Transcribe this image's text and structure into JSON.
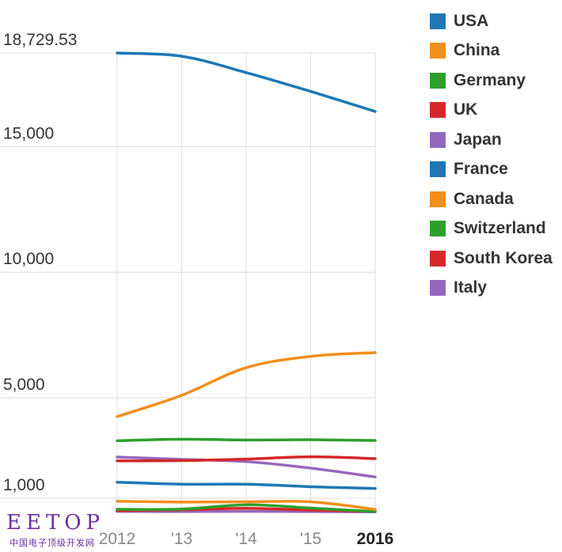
{
  "chart_data": {
    "type": "line",
    "title": "",
    "xlabel": "",
    "ylabel": "",
    "x": [
      "2012",
      "'13",
      "'14",
      "'15",
      "2016"
    ],
    "y_ticks": [
      "1,000",
      "5,000",
      "10,000",
      "15,000",
      "18,729.53"
    ],
    "y_tick_values": [
      1000,
      5000,
      10000,
      15000,
      18729.53
    ],
    "ylim": [
      435,
      18729.53
    ],
    "grid": "vertical lines at each x; horizontal lines at each y tick",
    "legend_position": "right",
    "series": [
      {
        "name": "USA",
        "color": "#1f77b4",
        "values": [
          18729.53,
          18600,
          17950,
          17200,
          16400
        ]
      },
      {
        "name": "China",
        "color": "#f28e1c",
        "values": [
          4250,
          5100,
          6200,
          6650,
          6800
        ]
      },
      {
        "name": "Germany",
        "color": "#2ca02c",
        "values": [
          3290,
          3350,
          3320,
          3330,
          3300
        ]
      },
      {
        "name": "UK",
        "color": "#d62728",
        "values": [
          2490,
          2500,
          2560,
          2650,
          2580
        ]
      },
      {
        "name": "Japan",
        "color": "#9467bd",
        "values": [
          2640,
          2550,
          2460,
          2200,
          1850
        ]
      },
      {
        "name": "France",
        "color": "#1f77b4",
        "values": [
          1640,
          1560,
          1560,
          1460,
          1390
        ]
      },
      {
        "name": "Canada",
        "color": "#f28e1c",
        "values": [
          880,
          850,
          860,
          860,
          560
        ]
      },
      {
        "name": "Switzerland",
        "color": "#2ca02c",
        "values": [
          560,
          570,
          740,
          610,
          470
        ]
      },
      {
        "name": "South Korea",
        "color": "#d62728",
        "values": [
          500,
          540,
          600,
          530,
          480
        ]
      },
      {
        "name": "Italy",
        "color": "#9467bd",
        "values": [
          480,
          470,
          480,
          470,
          460
        ]
      }
    ]
  },
  "watermark": {
    "text": "EETOP",
    "subtext": "中国电子顶级开发网"
  }
}
